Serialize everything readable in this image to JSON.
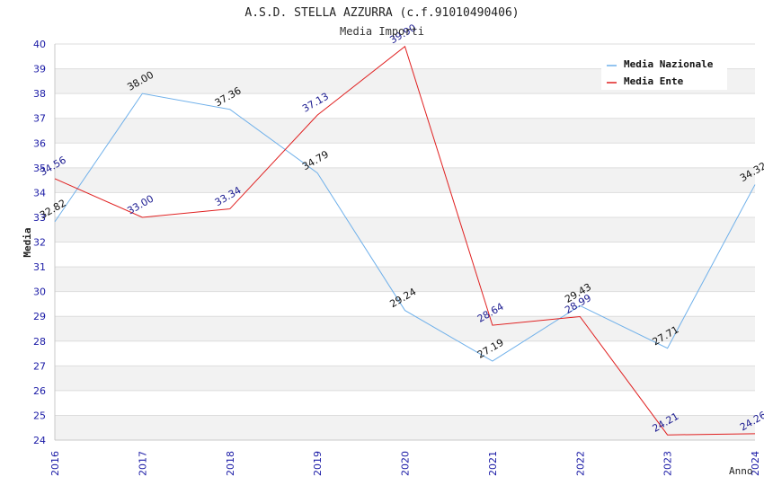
{
  "chart_data": {
    "type": "line",
    "title": "A.S.D. STELLA AZZURRA (c.f.91010490406)",
    "subtitle": "Media Importi",
    "xlabel": "Anno",
    "ylabel": "Media",
    "ylim": [
      24,
      40
    ],
    "yticks": [
      "24",
      "25",
      "26",
      "27",
      "28",
      "29",
      "30",
      "31",
      "32",
      "33",
      "34",
      "35",
      "36",
      "37",
      "38",
      "39",
      "40"
    ],
    "x": [
      "2016",
      "2017",
      "2018",
      "2019",
      "2020",
      "2021",
      "2022",
      "2023",
      "2024"
    ],
    "legend_position": "top-right",
    "series": [
      {
        "name": "Media Nazionale",
        "color": "#6fb0ea",
        "label_color": "#111111",
        "values": [
          32.82,
          38.0,
          37.36,
          34.79,
          29.24,
          27.19,
          29.43,
          27.71,
          34.32
        ],
        "labels": [
          "32.82",
          "38.00",
          "37.36",
          "34.79",
          "29.24",
          "27.19",
          "29.43",
          "27.71",
          "34.32"
        ]
      },
      {
        "name": "Media Ente",
        "color": "#e02020",
        "label_color": "#1a1a90",
        "values": [
          34.56,
          33.0,
          33.34,
          37.13,
          39.9,
          28.64,
          28.99,
          24.21,
          24.26
        ],
        "labels": [
          "34.56",
          "33.00",
          "33.34",
          "37.13",
          "39.90",
          "28.64",
          "28.99",
          "24.21",
          "24.26"
        ]
      }
    ]
  }
}
